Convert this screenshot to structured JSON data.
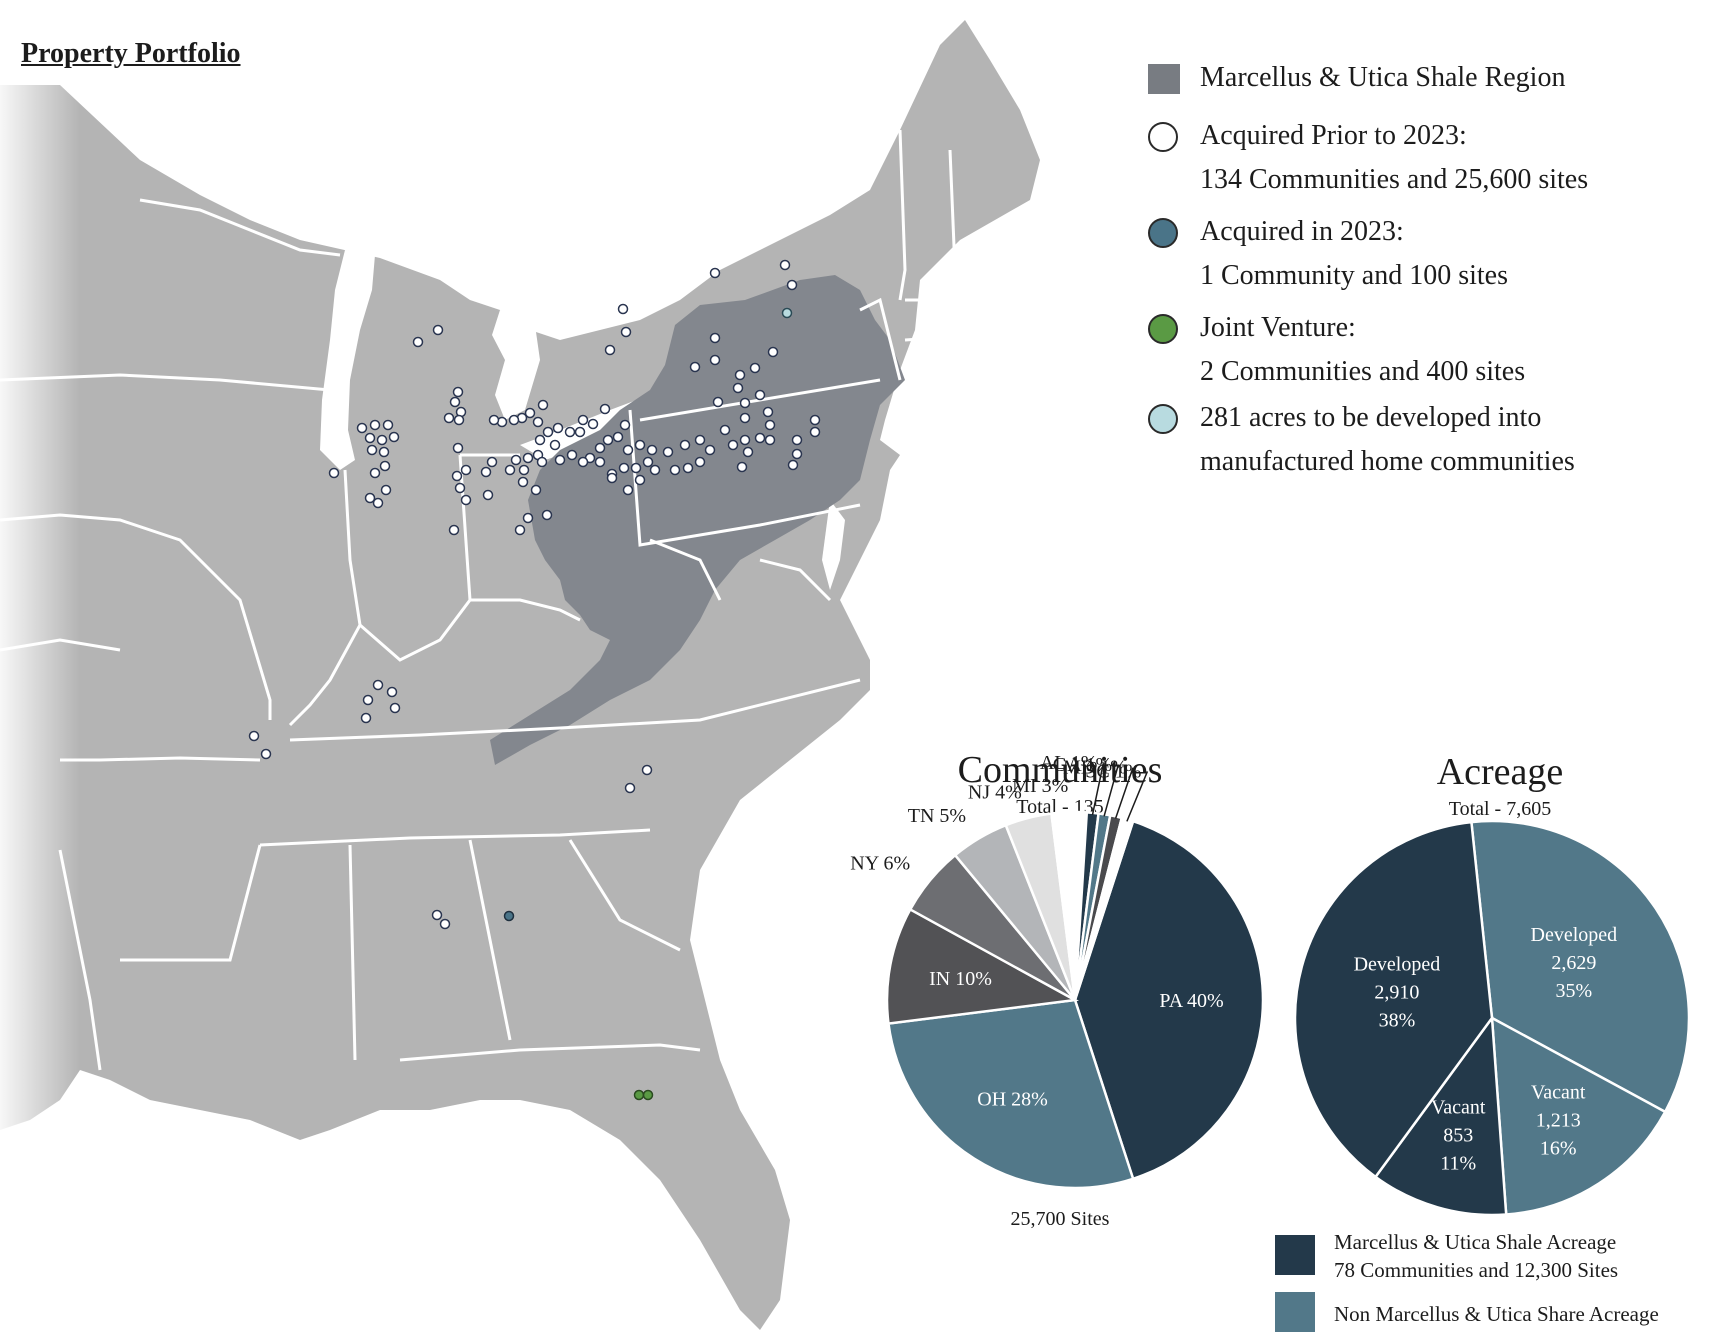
{
  "title": "Property Portfolio",
  "colors": {
    "land": "#b4b4b4",
    "water": "#ffffff",
    "shale": "#83878e",
    "dark_navy": "#23394a",
    "teal": "#527889",
    "green": "#5a9a44",
    "light_cyan": "#b8dbe0"
  },
  "legend": [
    {
      "icon": "dark-gray-square",
      "lines": [
        "Marcellus & Utica Shale Region"
      ]
    },
    {
      "icon": "white-circle",
      "lines": [
        "Acquired Prior to 2023:",
        "134 Communities and 25,600 sites"
      ]
    },
    {
      "icon": "blue-circle",
      "lines": [
        "Acquired in 2023:",
        "1 Community and 100 sites"
      ]
    },
    {
      "icon": "green-circle",
      "lines": [
        "Joint Venture:",
        "2 Communities and 400 sites"
      ]
    },
    {
      "icon": "light-cyan-circle",
      "lines": [
        "281 acres to be developed into",
        "manufactured home communities"
      ]
    }
  ],
  "communities_chart": {
    "title": "Communities",
    "subtitle": "Total - 135",
    "footer": "25,700 Sites"
  },
  "acreage_chart": {
    "title": "Acreage",
    "subtitle": "Total - 7,605"
  },
  "chart_data": [
    {
      "type": "pie",
      "title": "Communities",
      "subtitle": "Total - 135",
      "slices": [
        {
          "label": "PA 40%",
          "value": 40
        },
        {
          "label": "OH 28%",
          "value": 28
        },
        {
          "label": "IN 10%",
          "value": 10
        },
        {
          "label": "NY 6%",
          "value": 6
        },
        {
          "label": "TN 5%",
          "value": 5
        },
        {
          "label": "NJ 4%",
          "value": 4
        },
        {
          "label": "MI 3%",
          "value": 3
        },
        {
          "label": "AL 1%",
          "value": 1
        },
        {
          "label": "GA 1%",
          "value": 1
        },
        {
          "label": "MD 1%",
          "value": 1
        },
        {
          "label": "SC 1%",
          "value": 1
        }
      ]
    },
    {
      "type": "pie",
      "title": "Acreage",
      "subtitle": "Total - 7,605",
      "slices": [
        {
          "label": "Developed",
          "value": 2629,
          "percent": "35%"
        },
        {
          "label": "Vacant",
          "value": 1213,
          "percent": "16%"
        },
        {
          "label": "Vacant",
          "value": 853,
          "percent": "11%"
        },
        {
          "label": "Developed",
          "value": 2910,
          "percent": "38%"
        }
      ]
    }
  ],
  "bottom_legend": [
    {
      "lines": [
        "Marcellus & Utica Shale Acreage",
        "78 Communities and 12,300 Sites"
      ]
    },
    {
      "lines": [
        "Non Marcellus & Utica Share Acreage"
      ]
    }
  ]
}
